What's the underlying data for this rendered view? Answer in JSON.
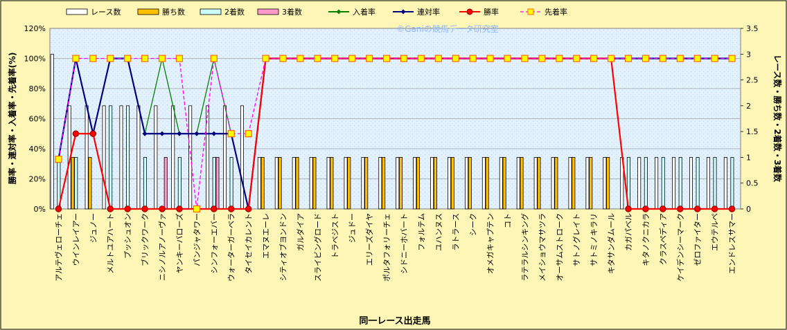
{
  "chart_data": {
    "type": "bar",
    "title": "",
    "watermark": "©Ganiの競馬データ研究室",
    "xlabel": "同一レース出走馬",
    "ylabel_left": "勝率・連対率・入着率・先着率(%)",
    "ylabel_right": "レース数・勝ち数・2着数・3着数",
    "ylim_left": [
      0,
      120
    ],
    "ylim_right": [
      0,
      3.5
    ],
    "yticks_left": [
      "0%",
      "20%",
      "40%",
      "60%",
      "80%",
      "100%",
      "120%"
    ],
    "yticks_right": [
      "0",
      "0.5",
      "1",
      "1.5",
      "2",
      "2.5",
      "3",
      "3.5"
    ],
    "grid": true,
    "legend_position": "top",
    "categories": [
      "アルテヴェローチェ",
      "ウインレイアー",
      "ジュノー",
      "メルトユアハート",
      "プッシュオン",
      "ブリックワーク",
      "ニシノルアノーヴァ",
      "ヤンキーバローズ",
      "パンジャタワー",
      "シンフォーエバー",
      "ウォーターガーベラ",
      "タイセイカレント",
      "エマヌエーレ",
      "シティオブヨンドン",
      "ガルダイア",
      "スライビングロード",
      "トラベジスト",
      "ジュドー",
      "エリーズダイヤ",
      "ポルタフォリーチェ",
      "シドニーホバート",
      "フォルテム",
      "ユハンヌス",
      "ラトラース",
      "シーク",
      "オメガキャプテン",
      "コト",
      "ラテラルシンキング",
      "メイショウマサツラ",
      "オーサムストローク",
      "サトノグレイト",
      "サトミノキラリ",
      "キタサンダムール",
      "カガパベル",
      "キタノクニカラ",
      "クラスペディア",
      "ケイデンシーマーク",
      "ゼロファイター",
      "エウテルペ",
      "エンドレスサマー"
    ],
    "bar_series": [
      {
        "name": "レース数",
        "color": "#ffffff",
        "values": [
          3,
          2,
          2,
          2,
          2,
          2,
          2,
          2,
          2,
          2,
          2,
          2,
          1,
          1,
          1,
          1,
          1,
          1,
          1,
          1,
          1,
          1,
          1,
          1,
          1,
          1,
          1,
          1,
          1,
          1,
          1,
          1,
          1,
          1,
          1,
          1,
          1,
          1,
          1,
          1
        ]
      },
      {
        "name": "勝ち数",
        "color": "#ffc000",
        "values": [
          0,
          1,
          1,
          0,
          0,
          0,
          0,
          0,
          0,
          0,
          0,
          0,
          1,
          1,
          1,
          1,
          1,
          1,
          1,
          1,
          1,
          1,
          1,
          1,
          1,
          1,
          1,
          1,
          1,
          1,
          1,
          1,
          1,
          0,
          0,
          0,
          0,
          0,
          0,
          0
        ]
      },
      {
        "name": "2着数",
        "color": "#ccffff",
        "values": [
          1,
          1,
          0,
          2,
          2,
          1,
          0,
          1,
          0,
          1,
          1,
          0,
          0,
          0,
          0,
          0,
          0,
          0,
          0,
          0,
          0,
          0,
          0,
          0,
          0,
          0,
          0,
          0,
          0,
          0,
          0,
          0,
          0,
          1,
          1,
          1,
          1,
          1,
          1,
          1
        ]
      },
      {
        "name": "3着数",
        "color": "#ff99cc",
        "values": [
          0,
          0,
          0,
          0,
          0,
          0,
          1,
          0,
          0,
          1,
          0,
          0,
          0,
          0,
          0,
          0,
          0,
          0,
          0,
          0,
          0,
          0,
          0,
          0,
          0,
          0,
          0,
          0,
          0,
          0,
          0,
          0,
          0,
          0,
          0,
          0,
          0,
          0,
          0,
          0
        ]
      }
    ],
    "line_series": [
      {
        "name": "入着率",
        "color": "#008000",
        "marker": "diamond",
        "values": [
          33,
          100,
          50,
          100,
          100,
          50,
          100,
          50,
          50,
          100,
          50,
          0,
          100,
          100,
          100,
          100,
          100,
          100,
          100,
          100,
          100,
          100,
          100,
          100,
          100,
          100,
          100,
          100,
          100,
          100,
          100,
          100,
          100,
          100,
          100,
          100,
          100,
          100,
          100,
          100
        ]
      },
      {
        "name": "連対率",
        "color": "#000080",
        "marker": "diamond",
        "values": [
          33,
          100,
          50,
          100,
          100,
          50,
          50,
          50,
          50,
          50,
          50,
          0,
          100,
          100,
          100,
          100,
          100,
          100,
          100,
          100,
          100,
          100,
          100,
          100,
          100,
          100,
          100,
          100,
          100,
          100,
          100,
          100,
          100,
          100,
          100,
          100,
          100,
          100,
          100,
          100
        ]
      },
      {
        "name": "勝率",
        "color": "#ff0000",
        "marker": "circle",
        "values": [
          0,
          50,
          50,
          0,
          0,
          0,
          0,
          0,
          0,
          0,
          0,
          0,
          100,
          100,
          100,
          100,
          100,
          100,
          100,
          100,
          100,
          100,
          100,
          100,
          100,
          100,
          100,
          100,
          100,
          100,
          100,
          100,
          100,
          0,
          0,
          0,
          0,
          0,
          0,
          0
        ]
      },
      {
        "name": "先着率",
        "color": "#ff00ff",
        "marker": "square",
        "dashed": true,
        "values": [
          33,
          100,
          100,
          100,
          100,
          100,
          100,
          100,
          0,
          100,
          50,
          50,
          100,
          100,
          100,
          100,
          100,
          100,
          100,
          100,
          100,
          100,
          100,
          100,
          100,
          100,
          100,
          100,
          100,
          100,
          100,
          100,
          100,
          100,
          100,
          100,
          100,
          100,
          100,
          100
        ]
      }
    ]
  }
}
